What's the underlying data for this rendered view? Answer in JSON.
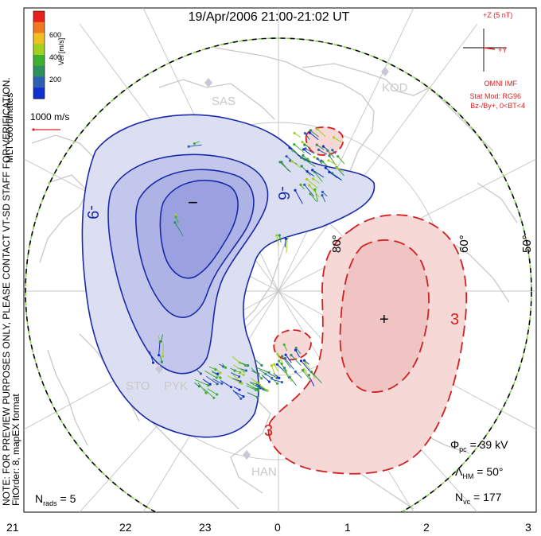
{
  "title": "19/Apr/2006 21:00-21:02 UT",
  "colorbar": {
    "label": "Vel [m/s]",
    "ticks": [
      "600",
      "400",
      "200"
    ],
    "colors": [
      "#e8201c",
      "#f07820",
      "#f0c020",
      "#a0d020",
      "#40b030",
      "#2f8f5f",
      "#3060b0",
      "#1030d0"
    ]
  },
  "vector_scale": {
    "label": "1000 m/s",
    "color": "#e02020"
  },
  "coord_label": "MLT coordinates",
  "imf": {
    "scale_label": "+Z (5 nT)",
    "y_label": "+Y",
    "source": "OMNI IMF",
    "stat_mod": "Stat Mod: RG96",
    "condition": "Bz-/By+, 0<BT<4",
    "color": "#e02020"
  },
  "watermark": "NOTE: FOR PREVIEW PURPOSES ONLY, PLEASE CONTACT VT-SD STAFF FOR VERIFICATION.",
  "fit_info": "FitOrder: 8, mapEX format",
  "latitude_labels": [
    "80°",
    "60°",
    "50°"
  ],
  "stations": [
    "SAS",
    "KOD",
    "STO",
    "PYK",
    "HAN"
  ],
  "contours": {
    "negative_label": "-9",
    "negative_label2": "-6",
    "positive_label": "3",
    "positive_label2": "3",
    "min_marker": "−",
    "max_marker": "+",
    "negative_color": "#1a2aa8",
    "positive_color": "#d02020"
  },
  "stats": {
    "phi_pc_symbol": "Φ",
    "phi_pc_sub": "pc",
    "phi_pc_value": " = 39 kV",
    "lambda_symbol": "Λ",
    "lambda_sub": "HM",
    "lambda_value": " = 50°",
    "nvc_symbol": "N",
    "nvc_sub": "vc",
    "nvc_value": " = 177",
    "nrads_symbol": "N",
    "nrads_sub": "rads",
    "nrads_value": " = 5"
  },
  "mlt_axis": [
    "21",
    "22",
    "23",
    "0",
    "1",
    "2",
    "3"
  ]
}
